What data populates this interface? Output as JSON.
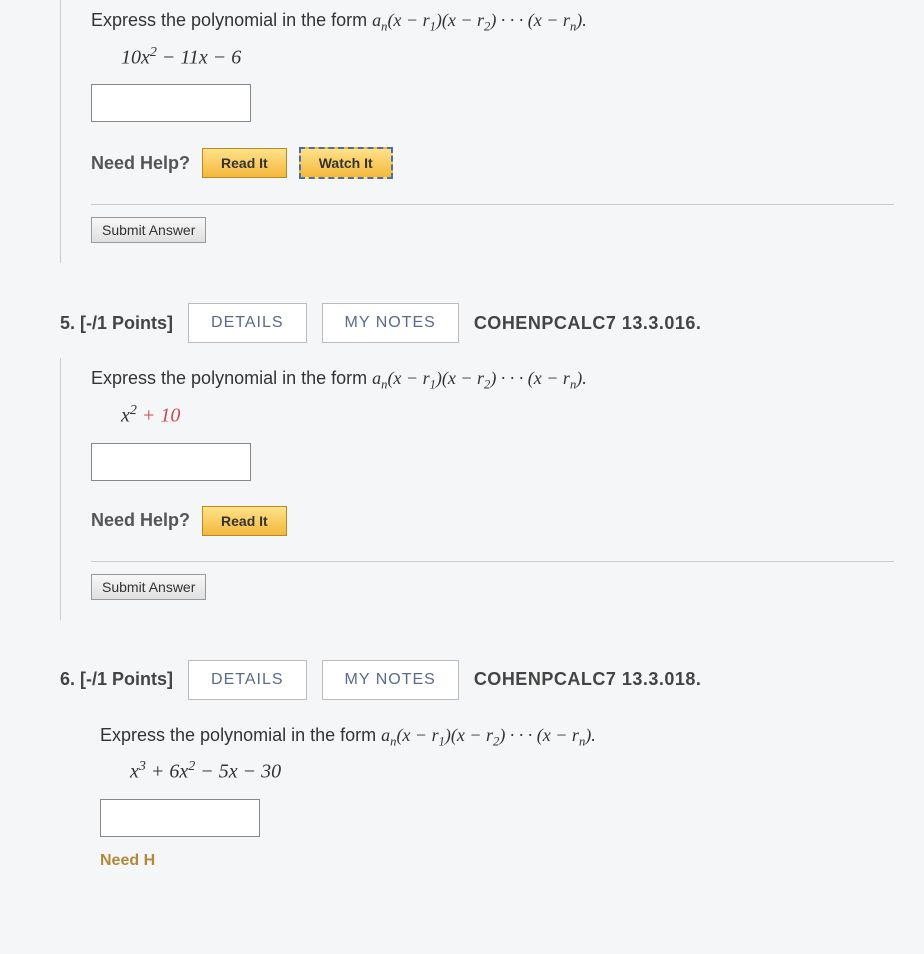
{
  "q4": {
    "prompt_prefix": "Express the polynomial in the form  ",
    "form_html": "a<sub class='sub'>n</sub>(x − r<sub class='sub'>1</sub>)(x − r<sub class='sub'>2</sub>) · · · (x − r<sub class='sub'>n</sub>).",
    "polynomial_html": "10x<sup class='sup'>2</sup> − 11x − 6",
    "help_label": "Need Help?",
    "read_btn": "Read It",
    "watch_btn": "Watch It",
    "submit_btn": "Submit Answer"
  },
  "q5": {
    "number": "5.",
    "points": "[-/1 Points]",
    "details_btn": "DETAILS",
    "notes_btn": "MY NOTES",
    "reference": "COHENPCALC7 13.3.016.",
    "prompt_prefix": "Express the polynomial in the form  ",
    "form_html": "a<sub class='sub'>n</sub>(x − r<sub class='sub'>1</sub>)(x − r<sub class='sub'>2</sub>) · · · (x − r<sub class='sub'>n</sub>).",
    "polynomial_html": "x<sup class='sup'>2</sup> <span class='plus'>+ 10</span>",
    "help_label": "Need Help?",
    "read_btn": "Read It",
    "submit_btn": "Submit Answer"
  },
  "q6": {
    "number": "6.",
    "points": "[-/1 Points]",
    "details_btn": "DETAILS",
    "notes_btn": "MY NOTES",
    "reference": "COHENPCALC7 13.3.018.",
    "prompt_prefix": "Express the polynomial in the form  ",
    "form_html": "a<sub class='sub'>n</sub>(x − r<sub class='sub'>1</sub>)(x − r<sub class='sub'>2</sub>) · · · (x − r<sub class='sub'>n</sub>).",
    "polynomial_html": "x<sup class='sup'>3</sup> + 6x<sup class='sup'>2</sup> − 5x − 30",
    "need_label": "Need H"
  }
}
